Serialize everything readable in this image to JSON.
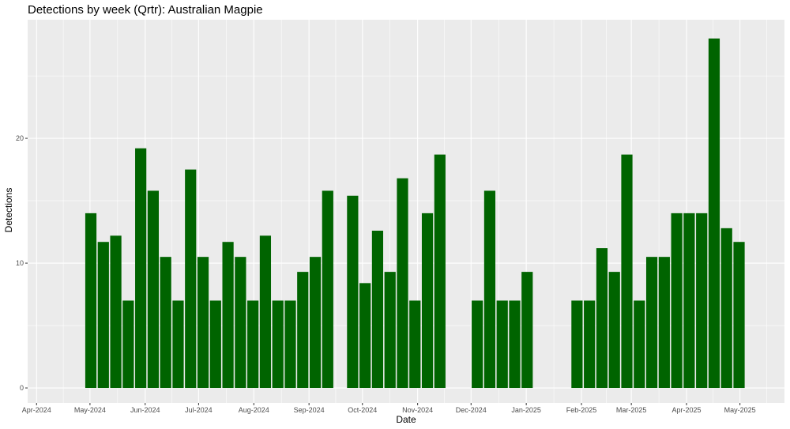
{
  "chart_data": {
    "type": "bar",
    "title": "Detections by week (Qrtr): Australian Magpie",
    "xlabel": "Date",
    "ylabel": "Detections",
    "ylim": [
      -1.2,
      29.5
    ],
    "xlim": [
      "2024-03-27",
      "2025-05-26"
    ],
    "y_ticks": [
      0,
      10,
      20
    ],
    "x_ticks": [
      {
        "date": "2024-04-01",
        "label": "Apr-2024"
      },
      {
        "date": "2024-05-01",
        "label": "May-2024"
      },
      {
        "date": "2024-06-01",
        "label": "Jun-2024"
      },
      {
        "date": "2024-07-01",
        "label": "Jul-2024"
      },
      {
        "date": "2024-08-01",
        "label": "Aug-2024"
      },
      {
        "date": "2024-09-01",
        "label": "Sep-2024"
      },
      {
        "date": "2024-10-01",
        "label": "Oct-2024"
      },
      {
        "date": "2024-11-01",
        "label": "Nov-2024"
      },
      {
        "date": "2024-12-01",
        "label": "Dec-2024"
      },
      {
        "date": "2025-01-01",
        "label": "Jan-2025"
      },
      {
        "date": "2025-02-01",
        "label": "Feb-2025"
      },
      {
        "date": "2025-03-01",
        "label": "Mar-2025"
      },
      {
        "date": "2025-04-01",
        "label": "Apr-2025"
      },
      {
        "date": "2025-05-01",
        "label": "May-2025"
      }
    ],
    "grid": true,
    "bar_color": "#006400",
    "panel_color": "#ebebeb",
    "x": [
      "2024-04-28",
      "2024-05-05",
      "2024-05-12",
      "2024-05-19",
      "2024-05-26",
      "2024-06-02",
      "2024-06-09",
      "2024-06-16",
      "2024-06-23",
      "2024-06-30",
      "2024-07-07",
      "2024-07-14",
      "2024-07-21",
      "2024-07-28",
      "2024-08-04",
      "2024-08-11",
      "2024-08-18",
      "2024-08-25",
      "2024-09-01",
      "2024-09-08",
      "2024-09-22",
      "2024-09-29",
      "2024-10-06",
      "2024-10-13",
      "2024-10-20",
      "2024-10-27",
      "2024-11-03",
      "2024-11-10",
      "2024-12-01",
      "2024-12-08",
      "2024-12-15",
      "2024-12-22",
      "2024-12-29",
      "2025-01-26",
      "2025-02-02",
      "2025-02-09",
      "2025-02-16",
      "2025-02-23",
      "2025-03-02",
      "2025-03-09",
      "2025-03-16",
      "2025-03-23",
      "2025-03-30",
      "2025-04-06",
      "2025-04-13",
      "2025-04-20",
      "2025-04-27"
    ],
    "values": [
      14.0,
      11.7,
      12.2,
      7.0,
      19.2,
      15.8,
      10.5,
      7.0,
      17.5,
      10.5,
      7.0,
      11.7,
      10.5,
      7.0,
      12.2,
      7.0,
      7.0,
      9.3,
      10.5,
      15.8,
      15.4,
      8.4,
      12.6,
      9.3,
      16.8,
      7.0,
      14.0,
      18.7,
      7.0,
      15.8,
      7.0,
      7.0,
      9.3,
      7.0,
      7.0,
      11.2,
      9.3,
      18.7,
      7.0,
      10.5,
      10.5,
      14.0,
      14.0,
      14.0,
      28.0,
      12.8,
      11.7
    ]
  }
}
